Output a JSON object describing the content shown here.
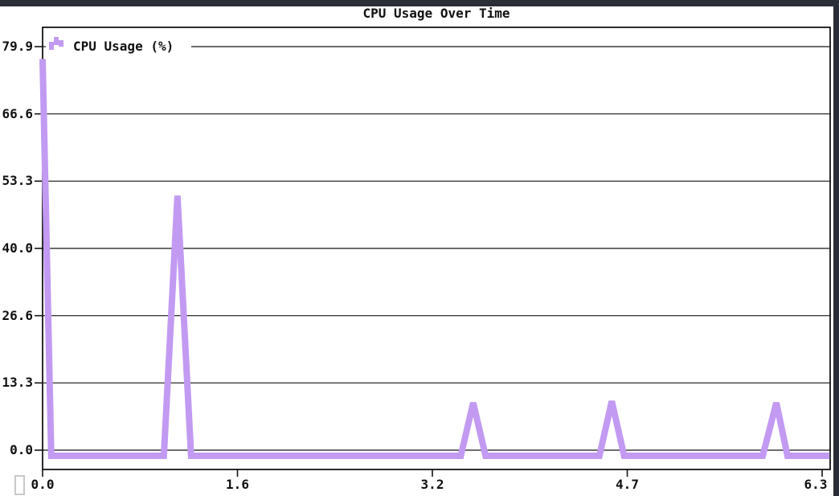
{
  "window": {
    "frame_color": "#2a2e37",
    "background": "#ffffff"
  },
  "terminal": {
    "cursor_visible": true,
    "cursor_border_color": "#c9c9c9"
  },
  "chart_data": {
    "type": "line",
    "title": "CPU Usage Over Time",
    "xlabel": "",
    "ylabel": "",
    "legend_entries": [
      "CPU Usage (%)"
    ],
    "legend_position": "top-left",
    "grid": "horizontal",
    "series_color": "#c29af2",
    "axis_color": "#141414",
    "text_color": "#111111",
    "xlim": [
      0,
      6.38
    ],
    "ylim": [
      -3.8,
      83.7
    ],
    "xticks": {
      "values": [
        0,
        1.575,
        3.15,
        4.725,
        6.3
      ],
      "labels": [
        "0.0",
        "1.6",
        "3.2",
        "4.7",
        "6.3"
      ]
    },
    "yticks": {
      "values": [
        0,
        13.32,
        26.64,
        39.96,
        53.28,
        66.6,
        79.92
      ],
      "labels": [
        "0.0",
        "13.3",
        "26.6",
        "40.0",
        "53.3",
        "66.6",
        "79.9"
      ]
    },
    "series": [
      {
        "name": "CPU Usage (%)",
        "points": [
          [
            0.0,
            78.6
          ],
          [
            0.07,
            0
          ],
          [
            0.98,
            0
          ],
          [
            1.09,
            51.5
          ],
          [
            1.2,
            0
          ],
          [
            3.38,
            0
          ],
          [
            3.48,
            10.5
          ],
          [
            3.58,
            0
          ],
          [
            4.5,
            0
          ],
          [
            4.6,
            10.8
          ],
          [
            4.7,
            0
          ],
          [
            5.82,
            0
          ],
          [
            5.93,
            10.5
          ],
          [
            6.02,
            0
          ],
          [
            6.36,
            0
          ]
        ]
      }
    ]
  }
}
